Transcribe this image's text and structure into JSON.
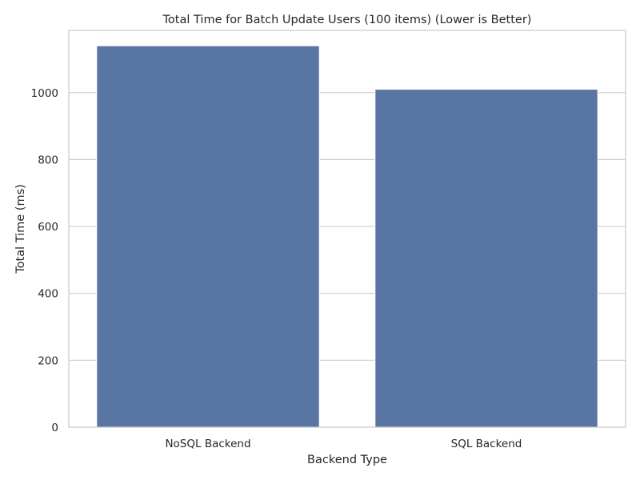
{
  "chart_data": {
    "type": "bar",
    "title": "Total Time for Batch Update Users (100 items) (Lower is Better)",
    "xlabel": "Backend Type",
    "ylabel": "Total Time (ms)",
    "categories": [
      "NoSQL Backend",
      "SQL Backend"
    ],
    "values": [
      1140,
      1010
    ],
    "ylim": [
      0,
      1186
    ],
    "yticks": [
      0,
      200,
      400,
      600,
      800,
      1000
    ],
    "grid": true,
    "grid_axis": "y",
    "bar_color": "#5875a4",
    "bar_edge_color": "#ffffff",
    "grid_color": "#cccccc",
    "spine_color": "#cccccc"
  }
}
